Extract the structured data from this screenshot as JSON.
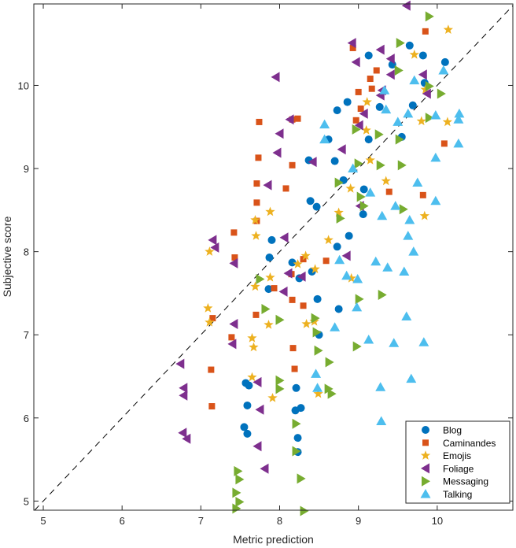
{
  "chart_data": {
    "type": "scatter",
    "title": "",
    "xlabel": "Metric prediction",
    "ylabel": "Subjective score",
    "xlim": [
      4.88,
      10.96
    ],
    "ylim": [
      4.89,
      10.98
    ],
    "xticks": [
      "5",
      "6",
      "7",
      "8",
      "9",
      "10"
    ],
    "yticks": [
      "5",
      "6",
      "7",
      "8",
      "9",
      "10"
    ],
    "grid": false,
    "legend_position": "bottom-right",
    "reference_line": "y = x (dashed)",
    "series": [
      {
        "name": "Blog",
        "marker": "circle",
        "color": "#0072BD",
        "points": [
          [
            9.13,
            10.36
          ],
          [
            9.65,
            10.48
          ],
          [
            9.82,
            10.36
          ],
          [
            10.1,
            10.28
          ],
          [
            9.84,
            10.03
          ],
          [
            9.43,
            10.25
          ],
          [
            8.86,
            9.8
          ],
          [
            8.73,
            9.7
          ],
          [
            9.13,
            9.35
          ],
          [
            8.62,
            9.35
          ],
          [
            9.27,
            9.74
          ],
          [
            8.7,
            9.09
          ],
          [
            8.81,
            8.86
          ],
          [
            9.07,
            8.75
          ],
          [
            9.06,
            8.45
          ],
          [
            8.37,
            9.1
          ],
          [
            8.39,
            8.61
          ],
          [
            8.47,
            8.54
          ],
          [
            8.73,
            8.06
          ],
          [
            8.88,
            8.19
          ],
          [
            7.87,
            7.93
          ],
          [
            7.9,
            8.14
          ],
          [
            8.16,
            7.87
          ],
          [
            8.41,
            7.76
          ],
          [
            8.25,
            7.68
          ],
          [
            7.86,
            7.55
          ],
          [
            8.48,
            7.43
          ],
          [
            8.75,
            7.31
          ],
          [
            8.5,
            7.0
          ],
          [
            7.57,
            6.42
          ],
          [
            7.61,
            6.39
          ],
          [
            7.59,
            6.15
          ],
          [
            7.55,
            5.89
          ],
          [
            7.59,
            5.81
          ],
          [
            8.21,
            6.36
          ],
          [
            8.2,
            6.09
          ],
          [
            8.27,
            6.12
          ],
          [
            8.23,
            5.76
          ],
          [
            8.23,
            5.59
          ],
          [
            9.69,
            9.76
          ],
          [
            9.55,
            9.38
          ]
        ]
      },
      {
        "name": "Caminandes",
        "marker": "square",
        "color": "#D95319",
        "points": [
          [
            9.85,
            10.65
          ],
          [
            8.93,
            10.45
          ],
          [
            9.23,
            10.18
          ],
          [
            9.15,
            10.08
          ],
          [
            9.0,
            9.92
          ],
          [
            9.17,
            9.96
          ],
          [
            7.74,
            9.56
          ],
          [
            8.16,
            9.59
          ],
          [
            8.23,
            9.6
          ],
          [
            7.73,
            9.13
          ],
          [
            8.16,
            9.04
          ],
          [
            7.71,
            8.82
          ],
          [
            8.08,
            8.76
          ],
          [
            7.71,
            8.59
          ],
          [
            7.42,
            8.23
          ],
          [
            7.71,
            8.37
          ],
          [
            7.43,
            7.93
          ],
          [
            8.15,
            7.73
          ],
          [
            8.3,
            7.91
          ],
          [
            8.59,
            7.89
          ],
          [
            7.93,
            7.56
          ],
          [
            8.16,
            7.42
          ],
          [
            8.3,
            7.35
          ],
          [
            7.39,
            6.97
          ],
          [
            7.13,
            6.58
          ],
          [
            7.14,
            6.14
          ],
          [
            7.7,
            7.24
          ],
          [
            8.17,
            6.84
          ],
          [
            8.19,
            6.59
          ],
          [
            7.15,
            7.2
          ],
          [
            10.09,
            9.3
          ],
          [
            9.82,
            8.68
          ],
          [
            9.39,
            8.72
          ],
          [
            9.03,
            9.72
          ],
          [
            8.97,
            9.58
          ]
        ]
      },
      {
        "name": "Emojis",
        "marker": "star",
        "color": "#EDB120",
        "points": [
          [
            10.14,
            10.67
          ],
          [
            9.85,
            9.95
          ],
          [
            10.13,
            9.56
          ],
          [
            9.71,
            10.37
          ],
          [
            9.11,
            9.8
          ],
          [
            9.1,
            9.46
          ],
          [
            9.8,
            9.57
          ],
          [
            9.84,
            8.43
          ],
          [
            7.88,
            8.48
          ],
          [
            7.69,
            8.38
          ],
          [
            7.7,
            8.19
          ],
          [
            7.11,
            8.0
          ],
          [
            7.88,
            7.69
          ],
          [
            7.69,
            7.58
          ],
          [
            8.33,
            7.95
          ],
          [
            8.23,
            7.85
          ],
          [
            7.09,
            7.32
          ],
          [
            7.11,
            7.15
          ],
          [
            7.65,
            6.96
          ],
          [
            7.67,
            6.85
          ],
          [
            7.86,
            7.12
          ],
          [
            7.91,
            6.24
          ],
          [
            7.65,
            6.49
          ],
          [
            8.34,
            7.13
          ],
          [
            8.44,
            7.16
          ],
          [
            8.62,
            8.14
          ],
          [
            8.75,
            8.47
          ],
          [
            8.9,
            8.76
          ],
          [
            8.45,
            7.79
          ],
          [
            8.91,
            7.68
          ],
          [
            8.49,
            6.29
          ],
          [
            9.15,
            9.1
          ],
          [
            9.35,
            8.85
          ]
        ]
      },
      {
        "name": "Foliage",
        "marker": "triangle-left",
        "color": "#7E2F8E",
        "points": [
          [
            9.61,
            10.96
          ],
          [
            8.92,
            10.51
          ],
          [
            9.28,
            10.43
          ],
          [
            8.97,
            10.28
          ],
          [
            7.95,
            10.1
          ],
          [
            9.41,
            10.32
          ],
          [
            9.82,
            10.13
          ],
          [
            9.41,
            10.13
          ],
          [
            9.3,
            9.94
          ],
          [
            9.07,
            9.66
          ],
          [
            9.01,
            9.52
          ],
          [
            7.97,
            9.19
          ],
          [
            7.85,
            8.8
          ],
          [
            8.13,
            9.59
          ],
          [
            8.0,
            9.42
          ],
          [
            8.42,
            9.08
          ],
          [
            8.06,
            8.17
          ],
          [
            7.15,
            8.14
          ],
          [
            7.18,
            8.05
          ],
          [
            7.42,
            7.86
          ],
          [
            8.11,
            7.74
          ],
          [
            8.28,
            7.7
          ],
          [
            8.05,
            7.52
          ],
          [
            7.42,
            7.13
          ],
          [
            7.4,
            6.89
          ],
          [
            6.74,
            6.65
          ],
          [
            6.78,
            6.36
          ],
          [
            6.78,
            6.27
          ],
          [
            6.77,
            5.82
          ],
          [
            6.82,
            5.75
          ],
          [
            7.72,
            6.43
          ],
          [
            7.75,
            6.1
          ],
          [
            7.72,
            5.66
          ],
          [
            7.81,
            5.39
          ],
          [
            8.85,
            7.95
          ],
          [
            9.02,
            8.55
          ],
          [
            8.79,
            9.23
          ],
          [
            9.28,
            9.88
          ],
          [
            9.87,
            9.9
          ]
        ]
      },
      {
        "name": "Messaging",
        "marker": "triangle-right",
        "color": "#77AC30",
        "points": [
          [
            9.9,
            10.83
          ],
          [
            9.53,
            10.51
          ],
          [
            9.51,
            10.18
          ],
          [
            9.9,
            9.99
          ],
          [
            10.05,
            9.9
          ],
          [
            9.9,
            9.61
          ],
          [
            8.97,
            9.47
          ],
          [
            9.26,
            9.41
          ],
          [
            9.52,
            9.35
          ],
          [
            9.28,
            9.04
          ],
          [
            9.55,
            9.04
          ],
          [
            8.75,
            8.83
          ],
          [
            9.03,
            8.66
          ],
          [
            9.07,
            8.55
          ],
          [
            8.77,
            8.4
          ],
          [
            9.57,
            8.51
          ],
          [
            7.75,
            7.67
          ],
          [
            7.82,
            7.31
          ],
          [
            8.0,
            7.18
          ],
          [
            8.45,
            7.2
          ],
          [
            8.47,
            7.03
          ],
          [
            8.63,
            6.67
          ],
          [
            8.0,
            6.45
          ],
          [
            8.0,
            6.35
          ],
          [
            8.62,
            6.35
          ],
          [
            8.66,
            6.29
          ],
          [
            8.21,
            5.93
          ],
          [
            8.21,
            5.6
          ],
          [
            8.27,
            5.27
          ],
          [
            7.47,
            5.36
          ],
          [
            7.49,
            5.26
          ],
          [
            7.45,
            5.1
          ],
          [
            7.49,
            4.99
          ],
          [
            7.45,
            4.91
          ],
          [
            8.31,
            4.88
          ],
          [
            8.49,
            6.81
          ],
          [
            9.01,
            7.43
          ],
          [
            9.3,
            7.48
          ],
          [
            8.98,
            6.86
          ],
          [
            9.0,
            9.06
          ]
        ]
      },
      {
        "name": "Talking",
        "marker": "triangle-up",
        "color": "#4DBEEE",
        "points": [
          [
            8.57,
            9.53
          ],
          [
            8.57,
            9.35
          ],
          [
            9.71,
            10.06
          ],
          [
            10.08,
            10.18
          ],
          [
            10.28,
            9.66
          ],
          [
            10.27,
            9.59
          ],
          [
            10.27,
            9.3
          ],
          [
            9.98,
            9.13
          ],
          [
            9.75,
            8.83
          ],
          [
            9.98,
            8.61
          ],
          [
            9.98,
            9.64
          ],
          [
            9.63,
            9.66
          ],
          [
            9.33,
            9.94
          ],
          [
            9.35,
            9.71
          ],
          [
            9.5,
            9.56
          ],
          [
            8.93,
            9.0
          ],
          [
            9.15,
            8.71
          ],
          [
            9.3,
            8.43
          ],
          [
            9.47,
            8.55
          ],
          [
            9.65,
            8.38
          ],
          [
            9.63,
            8.19
          ],
          [
            9.7,
            8.0
          ],
          [
            9.37,
            7.81
          ],
          [
            9.58,
            7.76
          ],
          [
            9.22,
            7.88
          ],
          [
            8.99,
            7.67
          ],
          [
            8.85,
            7.71
          ],
          [
            8.98,
            7.33
          ],
          [
            8.7,
            7.09
          ],
          [
            9.13,
            6.94
          ],
          [
            9.83,
            6.91
          ],
          [
            9.45,
            6.9
          ],
          [
            8.46,
            6.53
          ],
          [
            8.48,
            6.36
          ],
          [
            9.28,
            6.37
          ],
          [
            9.29,
            5.96
          ],
          [
            9.67,
            6.47
          ],
          [
            9.61,
            7.22
          ],
          [
            8.76,
            7.9
          ]
        ]
      }
    ]
  }
}
